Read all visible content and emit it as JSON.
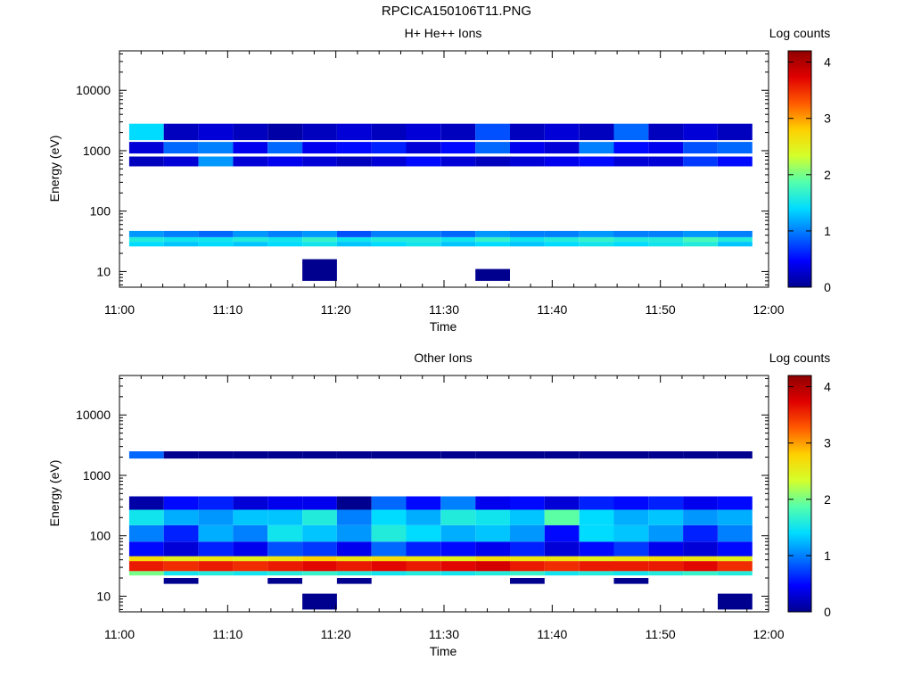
{
  "figure_title": "RPCICA150106T11.PNG",
  "colorscale": {
    "stops": [
      "#00008f",
      "#0000ff",
      "#0070ff",
      "#00dcff",
      "#52ffad",
      "#d4ff2b",
      "#ffd000",
      "#ff5a00",
      "#e00000",
      "#8f0000"
    ],
    "range": [
      0,
      4.2
    ]
  },
  "chart_data": [
    {
      "type": "heatmap",
      "title": "H+ He++ Ions",
      "xlabel": "Time",
      "ylabel": "Energy (eV)",
      "colorbar_label": "Log counts",
      "x_ticks": [
        "11:00",
        "11:10",
        "11:20",
        "11:30",
        "11:40",
        "11:50",
        "12:00"
      ],
      "y_ticks": [
        "10",
        "100",
        "1000",
        "10000"
      ],
      "colorbar_ticks": [
        "0",
        "1",
        "2",
        "3",
        "4"
      ],
      "xlim": [
        "11:00",
        "12:00"
      ],
      "ylim_eV": [
        5.5,
        45000
      ],
      "y_scale": "log",
      "time_bins": [
        "11:02:30",
        "11:05:42",
        "11:08:54",
        "11:12:06",
        "11:15:18",
        "11:18:30",
        "11:21:42",
        "11:24:54",
        "11:28:06",
        "11:31:18",
        "11:34:30",
        "11:37:42",
        "11:40:54",
        "11:44:06",
        "11:47:18",
        "11:50:30",
        "11:53:42",
        "11:56:54"
      ],
      "time_bin_width_min": 3.2,
      "energy_bands": [
        {
          "label": "26-31 eV",
          "e_lo": 26,
          "e_hi": 31,
          "log_counts": [
            1.4,
            1.3,
            1.4,
            1.3,
            1.4,
            1.5,
            1.3,
            1.4,
            1.5,
            1.3,
            1.4,
            1.3,
            1.4,
            1.5,
            1.4,
            1.5,
            1.6,
            1.3
          ]
        },
        {
          "label": "31-37 eV",
          "e_lo": 31,
          "e_hi": 37,
          "log_counts": [
            1.6,
            1.5,
            1.5,
            1.6,
            1.5,
            1.7,
            1.5,
            1.6,
            1.6,
            1.5,
            1.7,
            1.5,
            1.6,
            1.7,
            1.6,
            1.6,
            1.8,
            1.6
          ]
        },
        {
          "label": "37-47 eV",
          "e_lo": 37,
          "e_hi": 47,
          "log_counts": [
            1.1,
            1.0,
            0.9,
            1.1,
            1.0,
            1.1,
            0.8,
            1.0,
            1.0,
            0.9,
            1.1,
            1.0,
            1.0,
            1.1,
            1.0,
            1.0,
            1.1,
            1.0
          ]
        },
        {
          "label": "1500-2800 eV",
          "e_lo": 1500,
          "e_hi": 2800,
          "log_counts": [
            1.4,
            0.2,
            0.3,
            0.2,
            0.1,
            0.2,
            0.3,
            0.2,
            0.3,
            0.2,
            0.8,
            0.2,
            0.3,
            0.2,
            0.9,
            0.2,
            0.3,
            0.2
          ]
        },
        {
          "label": "900-1400 eV",
          "e_lo": 900,
          "e_hi": 1400,
          "log_counts": [
            0.3,
            0.9,
            1.0,
            0.4,
            0.9,
            0.4,
            0.5,
            0.6,
            0.3,
            0.5,
            0.9,
            0.4,
            0.3,
            1.0,
            0.5,
            0.4,
            0.8,
            0.9
          ]
        },
        {
          "label": "550-800 eV",
          "e_lo": 550,
          "e_hi": 800,
          "log_counts": [
            0.2,
            0.3,
            1.1,
            0.3,
            0.4,
            0.3,
            0.2,
            0.3,
            0.5,
            0.3,
            0.2,
            0.3,
            0.4,
            0.5,
            0.3,
            0.3,
            0.7,
            0.5
          ]
        }
      ],
      "sparse_low_count_cells": [
        {
          "time_bin": "11:18:30",
          "e_lo": 7,
          "e_hi": 16,
          "log_counts": 0
        },
        {
          "time_bin": "11:34:30",
          "e_lo": 7,
          "e_hi": 11,
          "log_counts": 0
        }
      ]
    },
    {
      "type": "heatmap",
      "title": "Other Ions",
      "xlabel": "Time",
      "ylabel": "Energy (eV)",
      "colorbar_label": "Log counts",
      "x_ticks": [
        "11:00",
        "11:10",
        "11:20",
        "11:30",
        "11:40",
        "11:50",
        "12:00"
      ],
      "y_ticks": [
        "10",
        "100",
        "1000",
        "10000"
      ],
      "colorbar_ticks": [
        "0",
        "1",
        "2",
        "3",
        "4"
      ],
      "xlim": [
        "11:00",
        "12:00"
      ],
      "ylim_eV": [
        5.5,
        45000
      ],
      "y_scale": "log",
      "time_bins": [
        "11:02:30",
        "11:05:42",
        "11:08:54",
        "11:12:06",
        "11:15:18",
        "11:18:30",
        "11:21:42",
        "11:24:54",
        "11:28:06",
        "11:31:18",
        "11:34:30",
        "11:37:42",
        "11:40:54",
        "11:44:06",
        "11:47:18",
        "11:50:30",
        "11:53:42",
        "11:56:54"
      ],
      "time_bin_width_min": 3.2,
      "energy_bands": [
        {
          "label": "22-26 eV",
          "e_lo": 22,
          "e_hi": 26,
          "log_counts": [
            2.0,
            1.5,
            1.6,
            1.5,
            1.6,
            1.7,
            1.6,
            1.5,
            1.6,
            1.5,
            1.6,
            1.7,
            1.5,
            1.6,
            1.5,
            1.6,
            1.7,
            1.6
          ]
        },
        {
          "label": "26-38 eV",
          "e_lo": 26,
          "e_hi": 38,
          "log_counts": [
            3.6,
            3.5,
            3.6,
            3.5,
            3.6,
            3.7,
            3.6,
            3.7,
            3.6,
            3.7,
            3.8,
            3.6,
            3.5,
            3.6,
            3.6,
            3.6,
            3.7,
            3.5
          ]
        },
        {
          "label": "38-46 eV",
          "e_lo": 38,
          "e_hi": 46,
          "log_counts": [
            2.7,
            2.5,
            2.6,
            2.5,
            2.6,
            2.8,
            2.6,
            2.7,
            2.6,
            2.5,
            2.7,
            2.6,
            2.6,
            2.5,
            2.6,
            2.7,
            2.6,
            2.5
          ]
        },
        {
          "label": "46-80 eV",
          "e_lo": 46,
          "e_hi": 80,
          "log_counts": [
            0.5,
            0.3,
            0.6,
            0.4,
            0.8,
            0.7,
            0.4,
            0.9,
            0.6,
            0.5,
            0.4,
            0.6,
            0.3,
            0.5,
            0.7,
            0.4,
            0.3,
            0.5
          ]
        },
        {
          "label": "80-150 eV",
          "e_lo": 80,
          "e_hi": 150,
          "log_counts": [
            1.0,
            0.6,
            1.2,
            1.0,
            1.5,
            1.3,
            1.1,
            1.6,
            1.4,
            1.2,
            1.3,
            1.1,
            0.5,
            1.4,
            1.3,
            1.1,
            0.6,
            1.0
          ]
        },
        {
          "label": "150-270 eV",
          "e_lo": 150,
          "e_hi": 270,
          "log_counts": [
            1.5,
            1.2,
            1.1,
            1.3,
            1.3,
            1.6,
            1.0,
            1.4,
            1.2,
            1.6,
            1.5,
            1.3,
            1.9,
            1.4,
            1.2,
            1.3,
            1.1,
            1.2
          ]
        },
        {
          "label": "270-450 eV",
          "e_lo": 270,
          "e_hi": 450,
          "log_counts": [
            0.1,
            0.5,
            0.6,
            0.3,
            0.4,
            0.4,
            0.0,
            0.9,
            0.5,
            1.0,
            0.4,
            0.5,
            0.3,
            0.6,
            0.5,
            0.6,
            0.4,
            0.5
          ]
        },
        {
          "label": "1900-2500 eV",
          "e_lo": 1900,
          "e_hi": 2500,
          "log_counts": [
            0.9,
            0,
            0,
            0,
            0,
            0,
            0,
            0,
            0,
            0,
            0,
            0,
            0,
            0,
            0,
            0,
            0,
            0
          ]
        }
      ],
      "sparse_low_count_cells": [
        {
          "time_bin": "11:05:42",
          "e_lo": 16,
          "e_hi": 20,
          "log_counts": 0
        },
        {
          "time_bin": "11:15:18",
          "e_lo": 16,
          "e_hi": 20,
          "log_counts": 0
        },
        {
          "time_bin": "11:18:30",
          "e_lo": 6,
          "e_hi": 11,
          "log_counts": 0
        },
        {
          "time_bin": "11:21:42",
          "e_lo": 16,
          "e_hi": 20,
          "log_counts": 0
        },
        {
          "time_bin": "11:37:42",
          "e_lo": 16,
          "e_hi": 20,
          "log_counts": 0
        },
        {
          "time_bin": "11:47:18",
          "e_lo": 16,
          "e_hi": 20,
          "log_counts": 0
        },
        {
          "time_bin": "11:56:54",
          "e_lo": 6,
          "e_hi": 11,
          "log_counts": 0
        }
      ]
    }
  ]
}
